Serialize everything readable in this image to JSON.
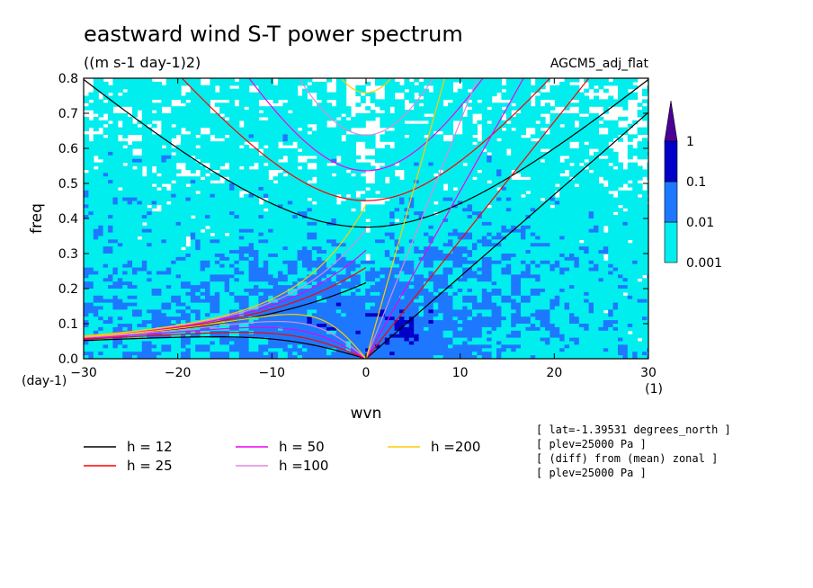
{
  "chart_data": {
    "type": "heatmap",
    "title": "eastward wind S-T power spectrum",
    "subtitle": "((m s-1 day-1)2)",
    "annotation": "AGCM5_adj_flat",
    "xlabel": "wvn",
    "ylabel": "freq",
    "x_unit": "(1)",
    "y_unit": "(day-1)",
    "xlim": [
      -30,
      30
    ],
    "ylim": [
      0,
      0.8
    ],
    "xticks": [
      -30,
      -20,
      -10,
      0,
      10,
      20,
      30
    ],
    "yticks": [
      0.0,
      0.1,
      0.2,
      0.3,
      0.4,
      0.5,
      0.6,
      0.7,
      0.8
    ],
    "xtick_labels": [
      "−30",
      "−20",
      "−10",
      "0",
      "10",
      "20",
      "30"
    ],
    "ytick_labels": [
      "0.0",
      "0.1",
      "0.2",
      "0.3",
      "0.4",
      "0.5",
      "0.6",
      "0.7",
      "0.8"
    ],
    "colorbar": {
      "levels": [
        0.001,
        0.01,
        0.1,
        1
      ],
      "labels": [
        "0.001",
        "0.01",
        "0.1",
        "1"
      ],
      "colors": [
        "#00eeee",
        "#1e78ff",
        "#0000c8",
        "#4b0096"
      ]
    },
    "dispersion_curves": [
      {
        "name": "h = 12",
        "h": 12,
        "color": "#000000"
      },
      {
        "name": "h = 25",
        "h": 25,
        "color": "#ff0000"
      },
      {
        "name": "h = 50",
        "h": 50,
        "color": "#ee00ee"
      },
      {
        "name": "h =100",
        "h": 100,
        "color": "#dd88dd"
      },
      {
        "name": "h =200",
        "h": 200,
        "color": "#ffcc00"
      }
    ],
    "info_lines": [
      "[ lat=-1.39531 degrees_north ]",
      "[ plev=25000 Pa ]",
      "[ (diff) from (mean) zonal ]",
      "[ plev=25000 Pa ]"
    ]
  }
}
